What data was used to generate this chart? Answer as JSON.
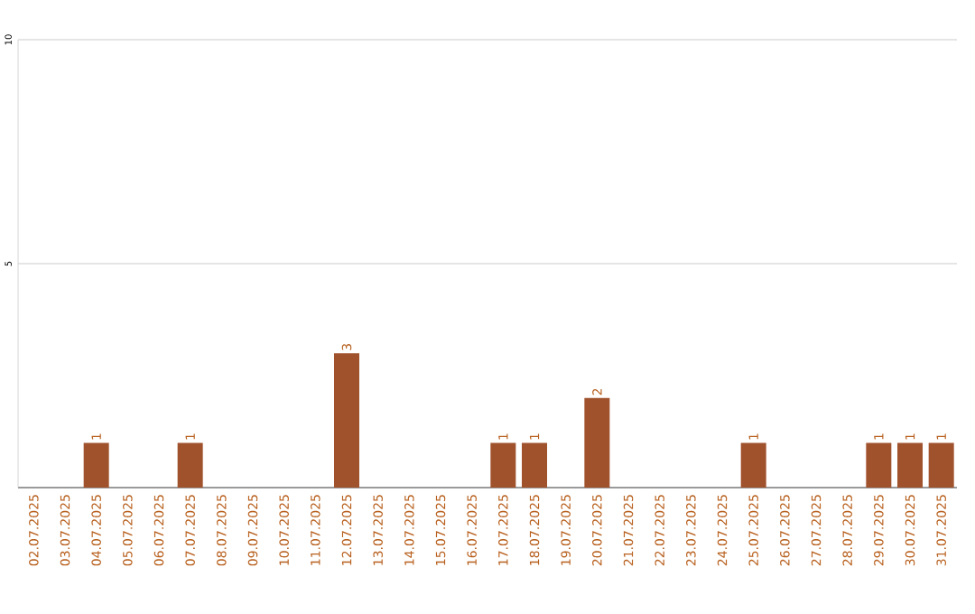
{
  "chart_data": {
    "type": "bar",
    "categories": [
      "02.07.2025",
      "03.07.2025",
      "04.07.2025",
      "05.07.2025",
      "06.07.2025",
      "07.07.2025",
      "08.07.2025",
      "09.07.2025",
      "10.07.2025",
      "11.07.2025",
      "12.07.2025",
      "13.07.2025",
      "14.07.2025",
      "15.07.2025",
      "16.07.2025",
      "17.07.2025",
      "18.07.2025",
      "19.07.2025",
      "20.07.2025",
      "21.07.2025",
      "22.07.2025",
      "23.07.2025",
      "24.07.2025",
      "25.07.2025",
      "26.07.2025",
      "27.07.2025",
      "28.07.2025",
      "29.07.2025",
      "30.07.2025",
      "31.07.2025"
    ],
    "values": [
      0,
      0,
      1,
      0,
      0,
      1,
      0,
      0,
      0,
      0,
      3,
      0,
      0,
      0,
      0,
      1,
      1,
      0,
      2,
      0,
      0,
      0,
      0,
      1,
      0,
      0,
      0,
      1,
      1,
      1
    ],
    "value_labels": [
      null,
      null,
      "1",
      null,
      null,
      "1",
      null,
      null,
      null,
      null,
      "3",
      null,
      null,
      null,
      null,
      "1",
      "1",
      null,
      "2",
      null,
      null,
      null,
      null,
      "1",
      null,
      null,
      null,
      "1",
      "1",
      "1"
    ],
    "color": "#a0522d",
    "ylim": [
      0,
      10
    ],
    "yticks": [
      5,
      10
    ],
    "grid": "y"
  }
}
